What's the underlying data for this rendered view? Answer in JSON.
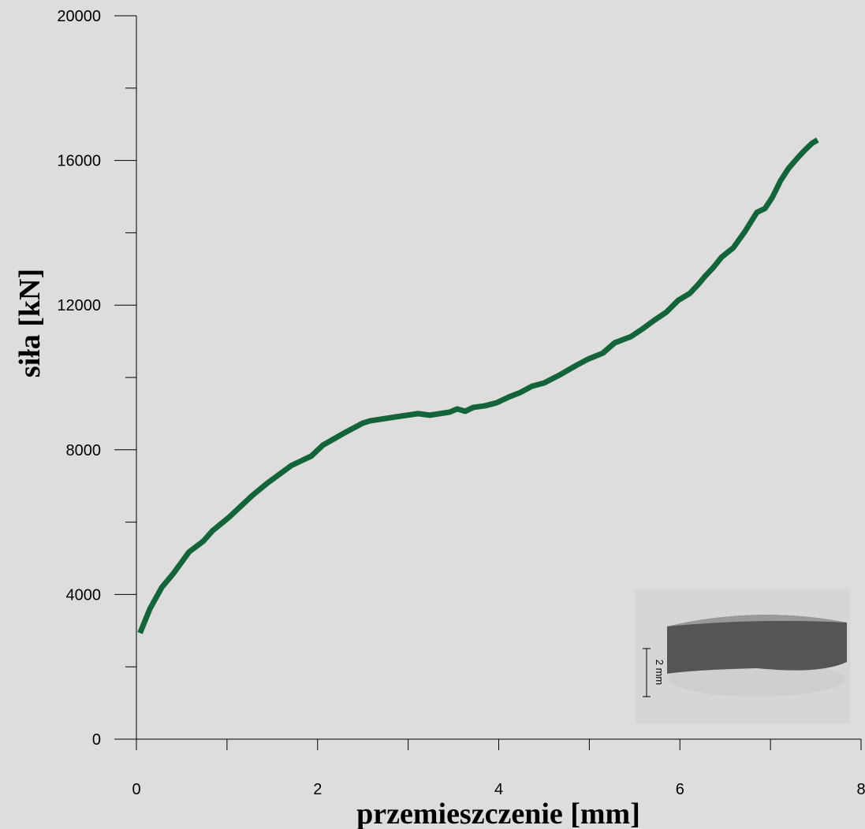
{
  "chart_data": {
    "type": "line",
    "x_label": "przemieszczenie [mm]",
    "y_label": "siła [kN]",
    "annotation": "2 mm",
    "xlim": [
      0,
      8
    ],
    "xticks": [
      0,
      2,
      4,
      6,
      8
    ],
    "xminorticks": [
      1,
      3,
      5,
      7
    ],
    "ylim": [
      0,
      20000
    ],
    "yticks": [
      0,
      4000,
      8000,
      12000,
      16000,
      20000
    ],
    "yminorticks": [
      2000,
      6000,
      10000,
      14000,
      18000
    ],
    "series": [
      {
        "color": "#14643a",
        "x": [
          0.04,
          0.15,
          0.28,
          0.41,
          0.58,
          0.74,
          0.84,
          1.02,
          1.28,
          1.45,
          1.71,
          1.93,
          2.06,
          2.32,
          2.5,
          2.58,
          2.93,
          3.11,
          3.24,
          3.46,
          3.54,
          3.63,
          3.72,
          3.85,
          3.98,
          4.11,
          4.24,
          4.37,
          4.5,
          4.67,
          4.85,
          4.98,
          5.15,
          5.28,
          5.46,
          5.59,
          5.72,
          5.85,
          5.98,
          6.11,
          6.2,
          6.28,
          6.37,
          6.46,
          6.59,
          6.72,
          6.85,
          6.94,
          7.02,
          7.11,
          7.2,
          7.29,
          7.37,
          7.46,
          7.52
        ],
        "values": [
          2935,
          3609,
          4196,
          4587,
          5174,
          5478,
          5761,
          6130,
          6739,
          7087,
          7565,
          7826,
          8130,
          8500,
          8739,
          8800,
          8935,
          9000,
          8957,
          9043,
          9130,
          9065,
          9174,
          9217,
          9304,
          9457,
          9587,
          9761,
          9848,
          10065,
          10326,
          10500,
          10674,
          10957,
          11130,
          11348,
          11587,
          11804,
          12130,
          12326,
          12565,
          12804,
          13043,
          13326,
          13587,
          14043,
          14565,
          14674,
          14978,
          15435,
          15783,
          16043,
          16261,
          16478,
          16565
        ]
      }
    ]
  }
}
